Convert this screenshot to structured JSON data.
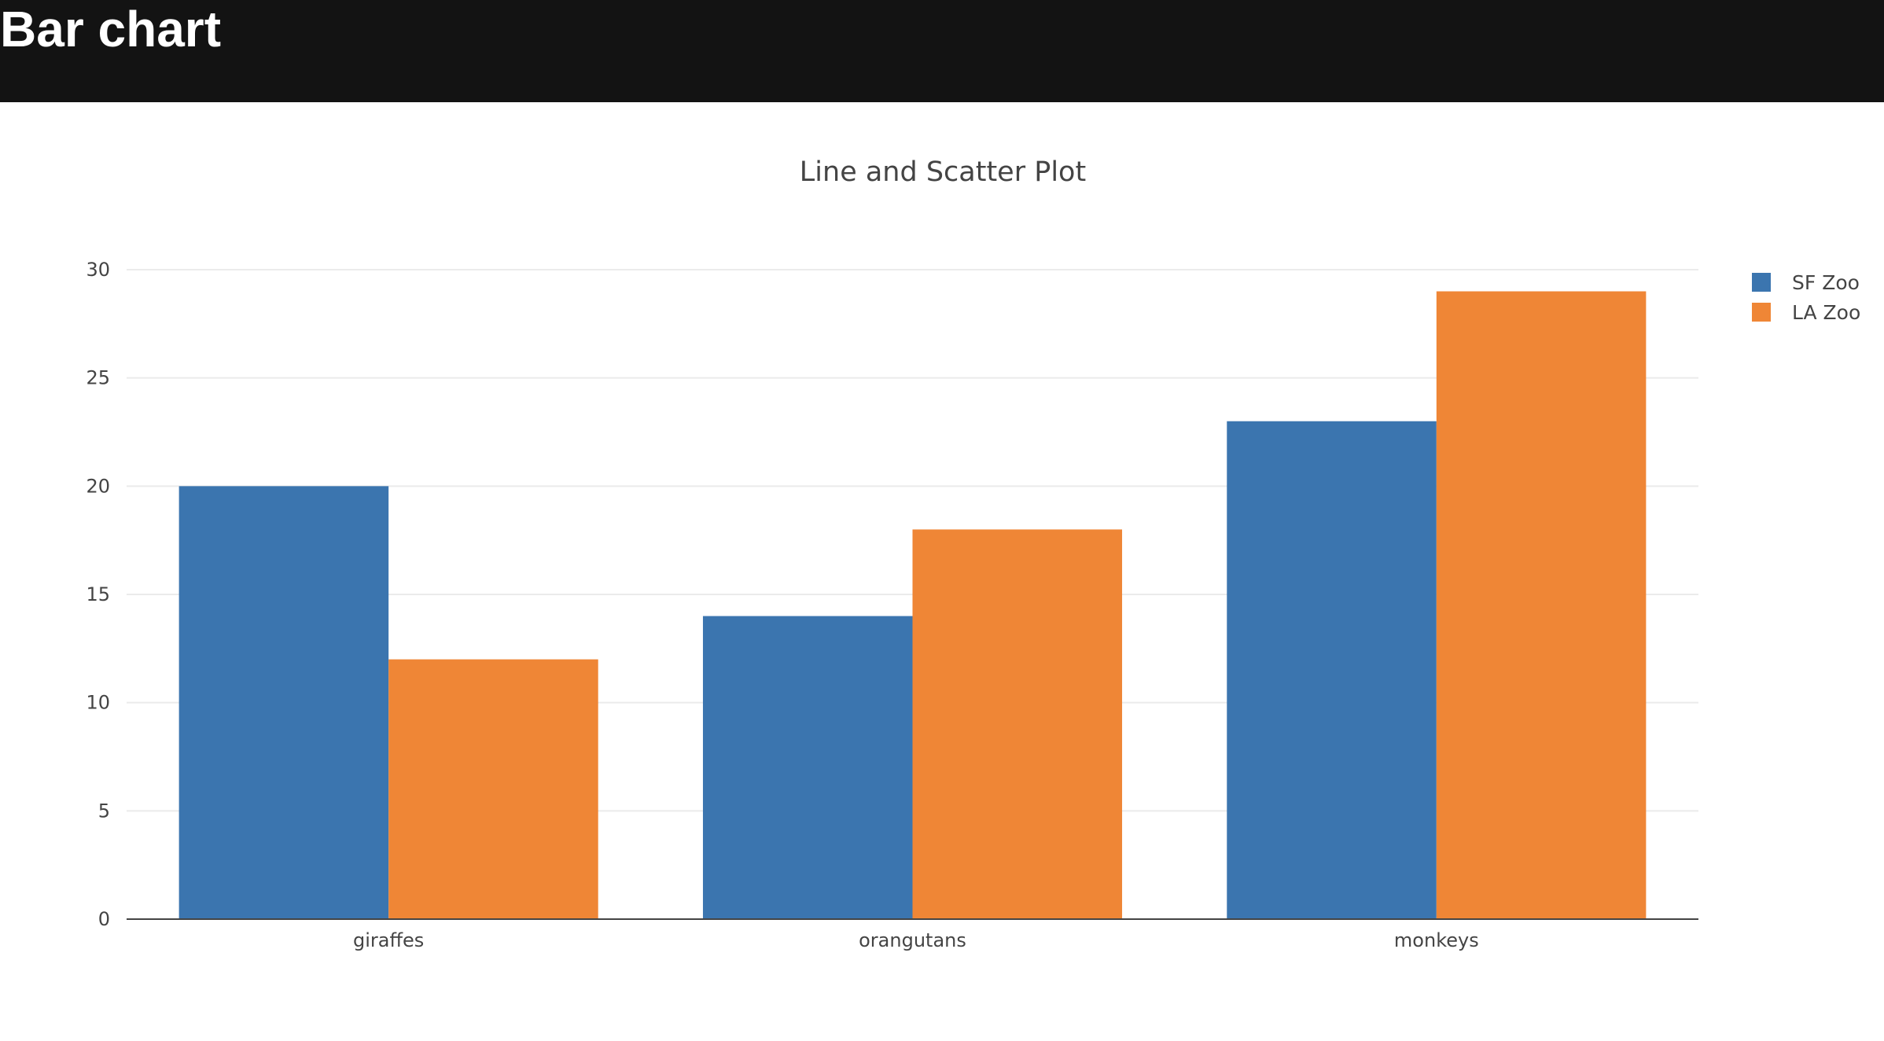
{
  "header": {
    "title": "Bar chart"
  },
  "chart_data": {
    "type": "bar",
    "title": "Line and Scatter Plot",
    "categories": [
      "giraffes",
      "orangutans",
      "monkeys"
    ],
    "series": [
      {
        "name": "SF Zoo",
        "values": [
          20,
          14,
          23
        ],
        "color": "#3b75af"
      },
      {
        "name": "LA Zoo",
        "values": [
          12,
          18,
          29
        ],
        "color": "#ef8636"
      }
    ],
    "ylim": [
      0,
      30
    ],
    "yticks": [
      0,
      5,
      10,
      15,
      20,
      25,
      30
    ],
    "grid": true,
    "legend": "top-right",
    "barmode": "group"
  }
}
